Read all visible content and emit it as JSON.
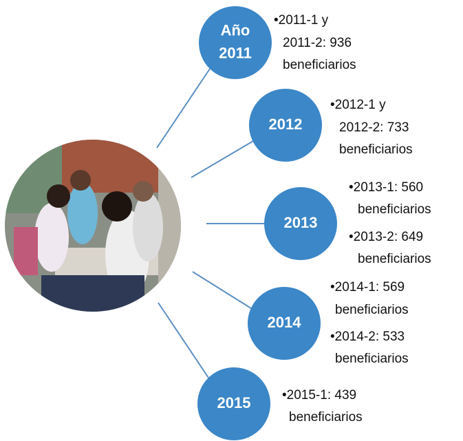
{
  "nodes": [
    {
      "label": [
        "Año",
        "2011"
      ],
      "bullets": [
        [
          "•2011-1 y",
          "2011-2: 936",
          "beneficiarios"
        ]
      ]
    },
    {
      "label": [
        "2012"
      ],
      "bullets": [
        [
          "•2012-1 y",
          "2012-2: 733",
          "beneficiarios"
        ]
      ]
    },
    {
      "label": [
        "2013"
      ],
      "bullets": [
        [
          "•2013-1: 560",
          "beneficiarios"
        ],
        [
          "•2013-2: 649",
          "beneficiarios"
        ]
      ]
    },
    {
      "label": [
        "2014"
      ],
      "bullets": [
        [
          "•2014-1: 569",
          "beneficiarios"
        ],
        [
          "•2014-2: 533",
          "beneficiarios"
        ]
      ]
    },
    {
      "label": [
        "2015"
      ],
      "bullets": [
        [
          "•2015-1: 439",
          "beneficiarios"
        ]
      ]
    }
  ]
}
